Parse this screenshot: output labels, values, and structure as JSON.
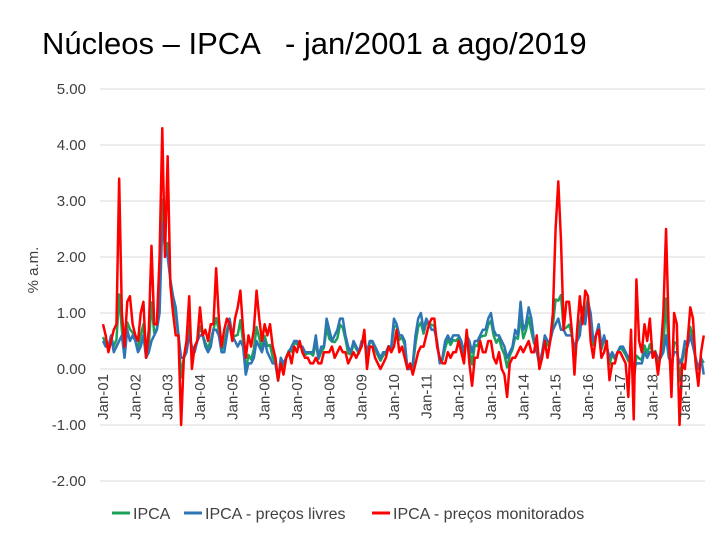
{
  "chart_data": {
    "type": "line",
    "title": "Núcleos – IPCA   - jan/2001 a ago/2019",
    "y_label": "% a.m.",
    "ylim": [
      -2,
      5
    ],
    "yticks": [
      {
        "value": -2,
        "label": "-2.00"
      },
      {
        "value": -1,
        "label": "-1.00"
      },
      {
        "value": 0,
        "label": "0.00"
      },
      {
        "value": 1,
        "label": "1.00"
      },
      {
        "value": 2,
        "label": "2.00"
      },
      {
        "value": 3,
        "label": "3.00"
      },
      {
        "value": 4,
        "label": "4.00"
      },
      {
        "value": 5,
        "label": "5.00"
      }
    ],
    "grid": true,
    "legend": "bottom",
    "categories": [
      "Jan-01",
      null,
      null,
      null,
      null,
      null,
      null,
      null,
      null,
      null,
      null,
      null,
      "Jan-02",
      null,
      null,
      null,
      null,
      null,
      null,
      null,
      null,
      null,
      null,
      null,
      "Jan-03",
      null,
      null,
      null,
      null,
      null,
      null,
      null,
      null,
      null,
      null,
      null,
      "Jan-04",
      null,
      null,
      null,
      null,
      null,
      null,
      null,
      null,
      null,
      null,
      null,
      "Jan-05",
      null,
      null,
      null,
      null,
      null,
      null,
      null,
      null,
      null,
      null,
      null,
      "Jan-06",
      null,
      null,
      null,
      null,
      null,
      null,
      null,
      null,
      null,
      null,
      null,
      "Jan-07",
      null,
      null,
      null,
      null,
      null,
      null,
      null,
      null,
      null,
      null,
      null,
      "Jan-08",
      null,
      null,
      null,
      null,
      null,
      null,
      null,
      null,
      null,
      null,
      null,
      "Jan-09",
      null,
      null,
      null,
      null,
      null,
      null,
      null,
      null,
      null,
      null,
      null,
      "Jan-10",
      null,
      null,
      null,
      null,
      null,
      null,
      null,
      null,
      null,
      null,
      null,
      "Jan-11",
      null,
      null,
      null,
      null,
      null,
      null,
      null,
      null,
      null,
      null,
      null,
      "Jan-12",
      null,
      null,
      null,
      null,
      null,
      null,
      null,
      null,
      null,
      null,
      null,
      "Jan-13",
      null,
      null,
      null,
      null,
      null,
      null,
      null,
      null,
      null,
      null,
      null,
      "Jan-14",
      null,
      null,
      null,
      null,
      null,
      null,
      null,
      null,
      null,
      null,
      null,
      "Jan-15",
      null,
      null,
      null,
      null,
      null,
      null,
      null,
      null,
      null,
      null,
      null,
      "Jan-16",
      null,
      null,
      null,
      null,
      null,
      null,
      null,
      null,
      null,
      null,
      null,
      "Jan-17",
      null,
      null,
      null,
      null,
      null,
      null,
      null,
      null,
      null,
      null,
      null,
      "Jan-18",
      null,
      null,
      null,
      null,
      null,
      null,
      null,
      null,
      null,
      null,
      null,
      "Jan-19",
      null,
      null,
      null,
      null,
      null,
      null,
      null
    ],
    "series": [
      {
        "name": "IPCA",
        "color": "#1ca05a",
        "values": [
          0.57,
          0.46,
          0.38,
          0.58,
          0.41,
          0.52,
          1.33,
          0.7,
          0.28,
          0.83,
          0.71,
          0.65,
          0.52,
          0.36,
          0.6,
          0.8,
          0.21,
          0.42,
          1.19,
          0.65,
          0.72,
          1.31,
          3.02,
          2.1,
          2.25,
          1.57,
          1.23,
          0.97,
          0.61,
          -0.15,
          0.2,
          0.34,
          0.78,
          0.29,
          0.34,
          0.52,
          0.76,
          0.61,
          0.47,
          0.37,
          0.51,
          0.71,
          0.91,
          0.69,
          0.33,
          0.44,
          0.69,
          0.86,
          0.58,
          0.59,
          0.61,
          0.87,
          0.49,
          -0.02,
          0.25,
          0.17,
          0.35,
          0.75,
          0.55,
          0.36,
          0.59,
          0.41,
          0.43,
          0.21,
          0.1,
          -0.21,
          0.19,
          0.05,
          0.21,
          0.33,
          0.31,
          0.48,
          0.44,
          0.44,
          0.37,
          0.25,
          0.28,
          0.28,
          0.24,
          0.47,
          0.18,
          0.3,
          0.38,
          0.74,
          0.54,
          0.49,
          0.48,
          0.55,
          0.79,
          0.74,
          0.53,
          0.28,
          0.26,
          0.45,
          0.36,
          0.28,
          0.48,
          0.55,
          0.2,
          0.48,
          0.47,
          0.36,
          0.24,
          0.15,
          0.24,
          0.28,
          0.41,
          0.37,
          0.75,
          0.78,
          0.52,
          0.57,
          0.43,
          0.0,
          0.01,
          0.04,
          0.45,
          0.75,
          0.83,
          0.63,
          0.83,
          0.8,
          0.79,
          0.77,
          0.47,
          0.15,
          0.16,
          0.37,
          0.53,
          0.43,
          0.52,
          0.5,
          0.56,
          0.45,
          0.21,
          0.64,
          0.36,
          0.08,
          0.43,
          0.41,
          0.57,
          0.59,
          0.6,
          0.79,
          0.86,
          0.6,
          0.47,
          0.55,
          0.37,
          0.26,
          0.03,
          0.24,
          0.35,
          0.57,
          0.54,
          0.92,
          0.55,
          0.69,
          0.92,
          0.67,
          0.46,
          0.4,
          0.01,
          0.25,
          0.57,
          0.42,
          0.51,
          0.78,
          1.24,
          1.22,
          1.32,
          0.71,
          0.74,
          0.79,
          0.62,
          0.22,
          0.54,
          0.82,
          1.01,
          0.96,
          1.27,
          0.9,
          0.43,
          0.61,
          0.78,
          0.35,
          0.52,
          0.44,
          0.08,
          0.26,
          0.18,
          0.3,
          0.38,
          0.33,
          0.25,
          0.14,
          0.31,
          -0.23,
          0.24,
          0.19,
          0.16,
          0.42,
          0.28,
          0.44,
          0.29,
          0.32,
          0.09,
          0.22,
          0.4,
          1.26,
          0.33,
          -0.09,
          0.48,
          0.45,
          -0.21,
          0.15,
          0.32,
          0.43,
          0.75,
          0.57,
          0.13,
          0.01,
          0.19,
          0.11
        ]
      },
      {
        "name": "IPCA - preços livres",
        "color": "#2e75b6",
        "values": [
          0.5,
          0.4,
          0.4,
          0.6,
          0.3,
          0.4,
          0.5,
          0.6,
          0.2,
          0.7,
          0.5,
          0.6,
          0.5,
          0.3,
          0.4,
          0.6,
          0.2,
          0.3,
          0.5,
          0.6,
          0.7,
          1.0,
          2.6,
          2.2,
          2.0,
          1.6,
          1.3,
          1.1,
          0.6,
          0.2,
          0.2,
          0.3,
          0.6,
          0.4,
          0.3,
          0.5,
          0.6,
          0.6,
          0.4,
          0.3,
          0.4,
          0.7,
          0.7,
          0.6,
          0.3,
          0.3,
          0.6,
          0.9,
          0.6,
          0.5,
          0.4,
          0.5,
          0.4,
          -0.1,
          0.1,
          0.1,
          0.2,
          0.5,
          0.4,
          0.3,
          0.5,
          0.3,
          0.2,
          0.1,
          0.1,
          -0.2,
          0.2,
          0.1,
          0.2,
          0.3,
          0.4,
          0.5,
          0.5,
          0.4,
          0.4,
          0.3,
          0.3,
          0.3,
          0.3,
          0.6,
          0.2,
          0.4,
          0.4,
          0.9,
          0.7,
          0.5,
          0.6,
          0.7,
          0.9,
          0.9,
          0.6,
          0.4,
          0.3,
          0.5,
          0.4,
          0.3,
          0.5,
          0.5,
          0.3,
          0.5,
          0.5,
          0.4,
          0.3,
          0.2,
          0.3,
          0.3,
          0.4,
          0.4,
          0.9,
          0.8,
          0.6,
          0.6,
          0.5,
          0.0,
          0.0,
          0.1,
          0.6,
          0.9,
          1.0,
          0.7,
          0.9,
          0.8,
          0.7,
          0.7,
          0.5,
          0.1,
          0.2,
          0.5,
          0.6,
          0.5,
          0.6,
          0.6,
          0.6,
          0.5,
          0.3,
          0.6,
          0.5,
          0.3,
          0.5,
          0.5,
          0.6,
          0.7,
          0.7,
          0.9,
          1.0,
          0.7,
          0.6,
          0.6,
          0.5,
          0.4,
          0.2,
          0.3,
          0.4,
          0.7,
          0.6,
          1.2,
          0.7,
          0.8,
          1.1,
          0.9,
          0.5,
          0.3,
          0.1,
          0.3,
          0.6,
          0.5,
          0.5,
          0.7,
          0.8,
          0.9,
          0.7,
          0.7,
          0.6,
          0.6,
          0.6,
          0.4,
          0.5,
          0.6,
          1.1,
          0.8,
          1.2,
          1.0,
          0.5,
          0.6,
          0.8,
          0.4,
          0.6,
          0.4,
          0.2,
          0.3,
          0.2,
          0.3,
          0.4,
          0.4,
          0.3,
          0.2,
          0.2,
          0.0,
          0.1,
          0.1,
          0.1,
          0.3,
          0.2,
          0.3,
          0.3,
          0.3,
          0.2,
          0.2,
          0.3,
          0.6,
          0.2,
          0.1,
          0.3,
          0.3,
          0.1,
          0.2,
          0.5,
          0.4,
          0.6,
          0.4,
          0.2,
          0.0,
          0.2,
          -0.1
        ]
      },
      {
        "name": "IPCA - preços monitorados",
        "color": "#ff0000",
        "values": [
          0.8,
          0.6,
          0.3,
          0.5,
          0.7,
          0.8,
          3.4,
          1.0,
          0.4,
          1.2,
          1.3,
          0.8,
          0.6,
          0.5,
          1.0,
          1.2,
          0.2,
          0.7,
          2.2,
          0.8,
          0.8,
          2.0,
          4.3,
          2.0,
          3.8,
          1.5,
          1.0,
          0.6,
          0.6,
          -1.0,
          0.2,
          0.5,
          1.3,
          0.0,
          0.4,
          0.5,
          1.1,
          0.6,
          0.7,
          0.5,
          0.8,
          0.8,
          1.8,
          0.9,
          0.4,
          0.7,
          0.9,
          0.8,
          0.5,
          0.9,
          1.1,
          1.4,
          0.7,
          0.2,
          0.6,
          0.4,
          0.7,
          1.4,
          0.9,
          0.5,
          0.8,
          0.6,
          0.8,
          0.4,
          0.2,
          -0.2,
          0.1,
          -0.1,
          0.2,
          0.3,
          0.1,
          0.4,
          0.3,
          0.5,
          0.3,
          0.2,
          0.2,
          0.1,
          0.1,
          0.2,
          0.1,
          0.1,
          0.3,
          0.3,
          0.3,
          0.4,
          0.2,
          0.3,
          0.4,
          0.3,
          0.3,
          0.1,
          0.2,
          0.3,
          0.2,
          0.3,
          0.4,
          0.7,
          0.0,
          0.4,
          0.4,
          0.2,
          0.1,
          0.0,
          0.1,
          0.2,
          0.4,
          0.3,
          0.4,
          0.7,
          0.3,
          0.4,
          0.2,
          0.0,
          0.1,
          -0.1,
          0.1,
          0.3,
          0.4,
          0.4,
          0.6,
          0.8,
          0.9,
          0.9,
          0.4,
          0.2,
          0.1,
          0.1,
          0.3,
          0.2,
          0.3,
          0.3,
          0.5,
          0.3,
          0.1,
          0.7,
          0.1,
          -0.3,
          0.2,
          0.2,
          0.5,
          0.3,
          0.3,
          0.5,
          0.5,
          0.2,
          0.1,
          0.3,
          0.0,
          -0.1,
          -0.5,
          0.1,
          0.2,
          0.2,
          0.3,
          0.4,
          0.3,
          0.4,
          0.5,
          0.3,
          0.3,
          0.6,
          0.0,
          0.2,
          0.5,
          0.2,
          0.5,
          1.0,
          2.5,
          3.35,
          2.3,
          0.7,
          1.2,
          1.2,
          0.7,
          -0.1,
          0.7,
          1.3,
          0.8,
          1.4,
          1.3,
          0.5,
          0.2,
          0.6,
          0.7,
          0.2,
          0.3,
          0.5,
          -0.2,
          0.1,
          0.1,
          0.3,
          0.3,
          0.2,
          0.1,
          -0.5,
          0.7,
          -0.9,
          1.6,
          0.5,
          0.3,
          0.8,
          0.5,
          0.9,
          0.2,
          0.3,
          -0.1,
          0.3,
          1.0,
          2.5,
          0.7,
          -0.5,
          1.0,
          0.8,
          -1.0,
          0.1,
          0.0,
          0.5,
          1.1,
          0.9,
          0.1,
          -0.3,
          0.3,
          0.6
        ]
      }
    ]
  }
}
